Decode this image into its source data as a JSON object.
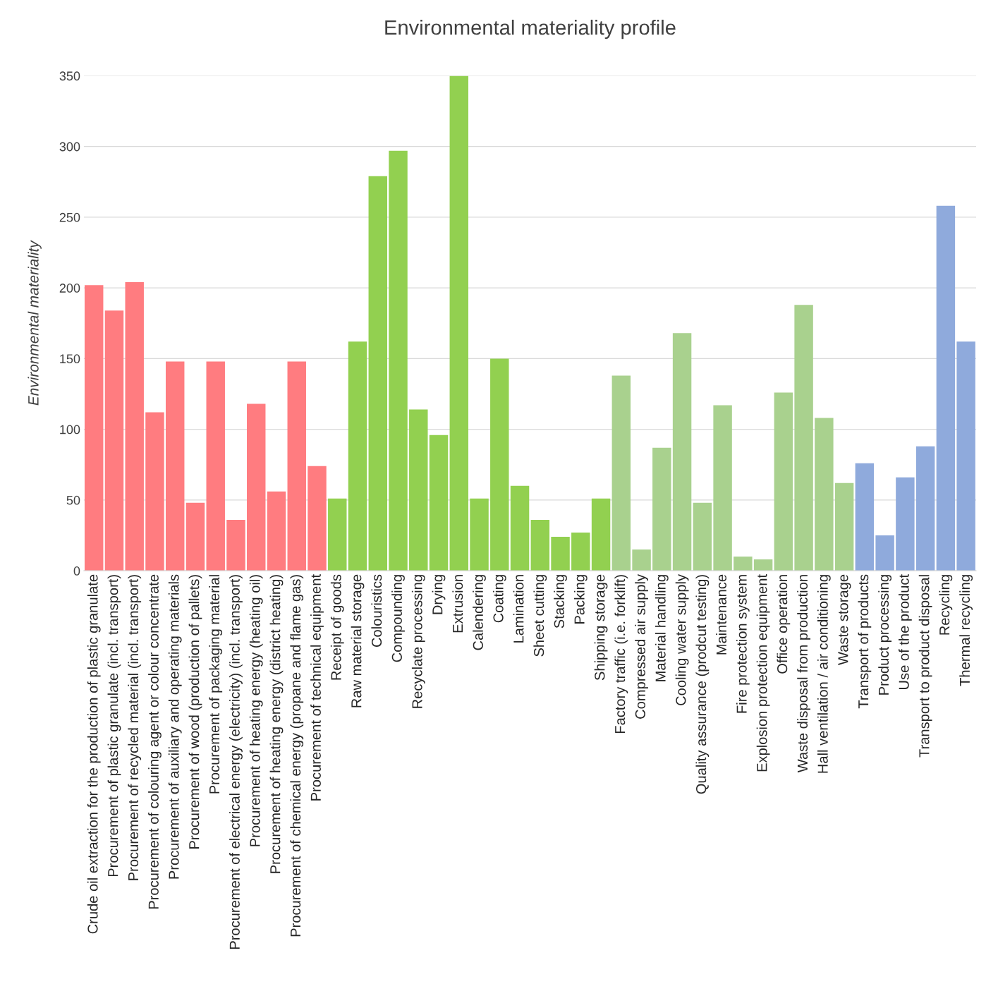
{
  "chart_data": {
    "type": "bar",
    "title": "Environmental materiality profile",
    "ylabel": "Environmental materiality",
    "categories": [
      "Crude oil extraction for the production of plastic granulate",
      "Procurement of plastic granulate (incl. transport)",
      "Procurement of recycled material (incl. transport)",
      "Procurement of colouring agent or colour concentrate",
      "Procurement of auxiliary and operating materials",
      "Procurement of wood (production of pallets)",
      "Procurement of packaging material",
      "Procurement of electrical energy (electricity) (incl. transport)",
      "Procurement of heating energy (heating oil)",
      "Procurement of heating energy (district heating)",
      "Procurement of chemical energy (propane and flame gas)",
      "Procurement of technical equipment",
      "Receipt of goods",
      "Raw material storage",
      "Colouristics",
      "Compounding",
      "Recyclate processing",
      "Drying",
      "Extrusion",
      "Calendering",
      "Coating",
      "Lamination",
      "Sheet cutting",
      "Stacking",
      "Packing",
      "Shipping storage",
      "Factory traffic (i.e. forklift)",
      "Compressed air supply",
      "Material handling",
      "Cooling water supply",
      "Quality assurance (prodcut testing)",
      "Maintenance",
      "Fire protection system",
      "Explosion protection equipment",
      "Office operation",
      "Waste disposal from production",
      "Hall ventilation / air conditioning",
      "Waste storage",
      "Transport of products",
      "Product processing",
      "Use of the product",
      "Transport to product disposal",
      "Recycling",
      "Thermal recycling"
    ],
    "values": [
      202,
      184,
      204,
      112,
      148,
      48,
      148,
      36,
      118,
      56,
      148,
      74,
      51,
      162,
      279,
      297,
      114,
      96,
      350,
      51,
      150,
      60,
      36,
      24,
      27,
      51,
      138,
      15,
      87,
      168,
      48,
      117,
      10,
      8,
      126,
      188,
      108,
      62,
      76,
      25,
      66,
      88,
      258,
      162
    ],
    "colors": [
      "#ff7c80",
      "#ff7c80",
      "#ff7c80",
      "#ff7c80",
      "#ff7c80",
      "#ff7c80",
      "#ff7c80",
      "#ff7c80",
      "#ff7c80",
      "#ff7c80",
      "#ff7c80",
      "#ff7c80",
      "#92d050",
      "#92d050",
      "#92d050",
      "#92d050",
      "#92d050",
      "#92d050",
      "#92d050",
      "#92d050",
      "#92d050",
      "#92d050",
      "#92d050",
      "#92d050",
      "#92d050",
      "#92d050",
      "#a9d18e",
      "#a9d18e",
      "#a9d18e",
      "#a9d18e",
      "#a9d18e",
      "#a9d18e",
      "#a9d18e",
      "#a9d18e",
      "#a9d18e",
      "#a9d18e",
      "#a9d18e",
      "#a9d18e",
      "#8faadc",
      "#8faadc",
      "#8faadc",
      "#8faadc",
      "#8faadc",
      "#8faadc"
    ],
    "ylim": [
      0,
      350
    ],
    "yticks": [
      0,
      50,
      100,
      150,
      200,
      250,
      300,
      350
    ],
    "grid": "y"
  }
}
